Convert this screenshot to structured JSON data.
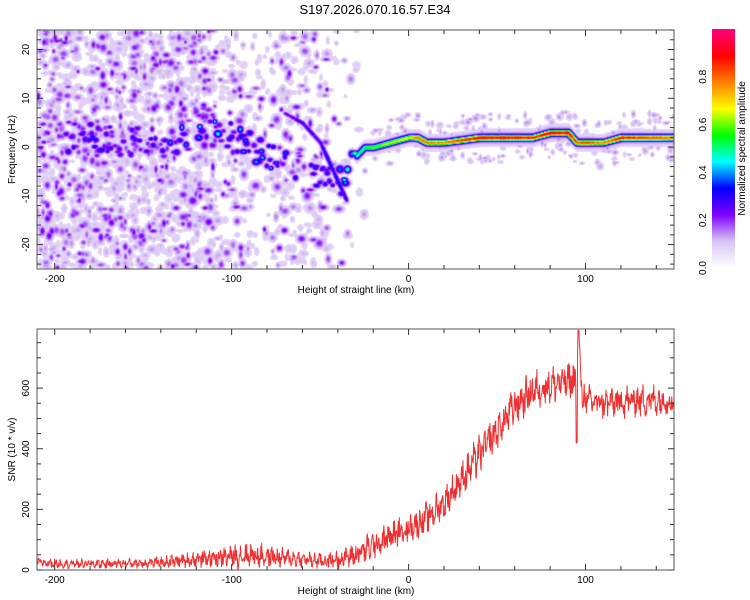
{
  "title": "S197.2026.070.16.57.E34",
  "chart_data": [
    {
      "type": "heatmap",
      "name": "spectrogram",
      "title": "",
      "xlabel": "Height of straight line (km)",
      "ylabel": "Frequency (Hz)",
      "xlim": [
        -210,
        150
      ],
      "ylim": [
        -25,
        24
      ],
      "xticks": [
        -200,
        -100,
        0,
        100
      ],
      "yticks": [
        -20,
        -10,
        0,
        10,
        20
      ],
      "colorbar": {
        "label": "Normalized spectral amplitude",
        "range": [
          0.0,
          1.0
        ],
        "ticks": [
          0.0,
          0.2,
          0.4,
          0.6,
          0.8
        ],
        "colormap": [
          "#ffffff",
          "#d9c4f5",
          "#8000ff",
          "#0000ff",
          "#00ffff",
          "#00ff00",
          "#ffff00",
          "#ff8000",
          "#ff0000",
          "#ff0080"
        ]
      },
      "ridge_main": {
        "x": [
          -200,
          -180,
          -160,
          -140,
          -120,
          -100,
          -90,
          -80,
          -70,
          -60,
          -50,
          -40,
          -35,
          -30,
          -25,
          -20,
          -10,
          0,
          5,
          10,
          20,
          40,
          60,
          70,
          80,
          90,
          95,
          100,
          110,
          120,
          140,
          150
        ],
        "freq": [
          2,
          2,
          1,
          1,
          3,
          2,
          0,
          -2,
          -3,
          -4,
          -6,
          -8,
          -4,
          -2,
          0,
          0,
          1,
          2,
          2,
          1,
          1,
          2,
          2,
          2,
          3,
          3,
          1,
          1,
          1,
          2,
          2,
          2
        ],
        "amplitude": [
          0.2,
          0.25,
          0.2,
          0.25,
          0.35,
          0.3,
          0.3,
          0.3,
          0.25,
          0.25,
          0.3,
          0.35,
          0.4,
          0.45,
          0.55,
          0.6,
          0.65,
          0.7,
          0.85,
          0.8,
          0.8,
          0.95,
          0.95,
          0.9,
          0.95,
          0.95,
          0.85,
          0.85,
          0.8,
          0.9,
          0.85,
          0.8
        ]
      },
      "ridge_secondary": {
        "x": [
          -70,
          -60,
          -50,
          -45,
          -40,
          -35
        ],
        "freq": [
          7,
          5,
          1,
          -3,
          -7,
          -11
        ],
        "amplitude": [
          0.2,
          0.25,
          0.25,
          0.3,
          0.3,
          0.25
        ]
      }
    },
    {
      "type": "line",
      "name": "snr",
      "title": "",
      "xlabel": "Height of straight line (km)",
      "ylabel": "SNR (10 * v/v)",
      "xlim": [
        -210,
        150
      ],
      "ylim": [
        0,
        795
      ],
      "xticks": [
        -200,
        -100,
        0,
        100
      ],
      "yticks": [
        0,
        200,
        400,
        600
      ],
      "color": "#f03030",
      "series": [
        {
          "name": "SNR",
          "x": [
            -210,
            -200,
            -180,
            -160,
            -140,
            -120,
            -110,
            -100,
            -90,
            -80,
            -70,
            -60,
            -50,
            -40,
            -30,
            -20,
            -10,
            0,
            10,
            20,
            30,
            40,
            50,
            60,
            70,
            80,
            90,
            95,
            96,
            98,
            100,
            110,
            120,
            130,
            140,
            150
          ],
          "y": [
            25,
            22,
            20,
            22,
            25,
            35,
            40,
            45,
            50,
            45,
            40,
            35,
            30,
            35,
            50,
            80,
            110,
            140,
            170,
            220,
            300,
            380,
            460,
            540,
            590,
            610,
            620,
            630,
            790,
            580,
            560,
            550,
            555,
            560,
            560,
            560
          ],
          "noise_amplitude": [
            15,
            15,
            15,
            15,
            18,
            25,
            30,
            35,
            40,
            35,
            30,
            25,
            25,
            30,
            40,
            45,
            45,
            45,
            50,
            50,
            55,
            60,
            60,
            60,
            60,
            60,
            60,
            60,
            0,
            60,
            50,
            50,
            50,
            50,
            50,
            50
          ]
        }
      ]
    }
  ]
}
